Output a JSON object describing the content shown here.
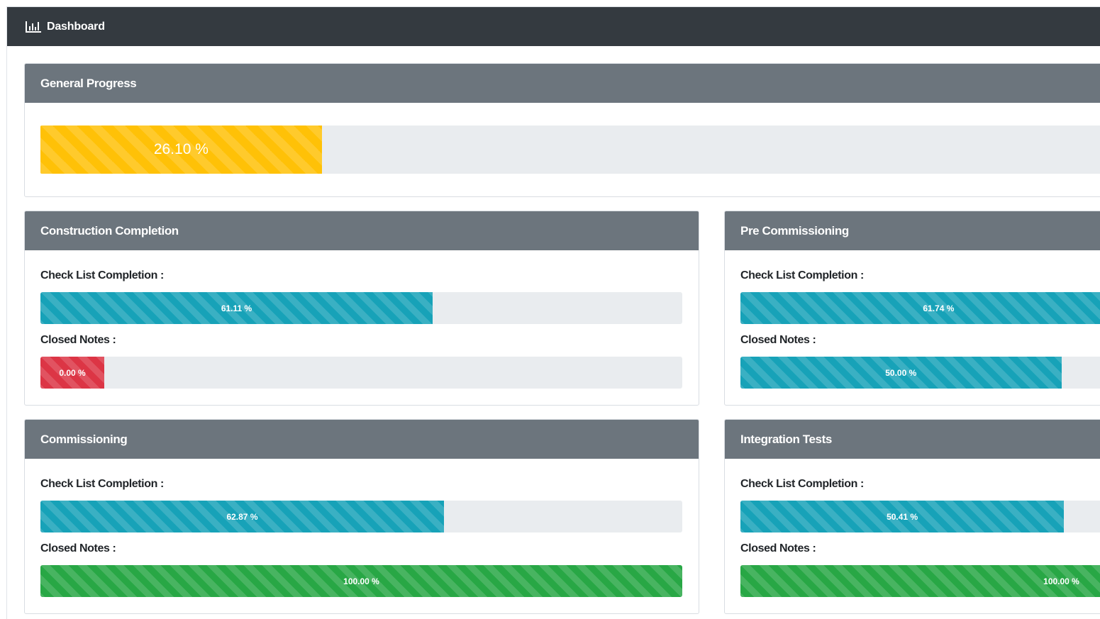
{
  "header": {
    "title": "Dashboard",
    "icon": "bar-chart-icon"
  },
  "colors": {
    "warning": "#ffc107",
    "info": "#17a2b8",
    "danger": "#dc3545",
    "success": "#28a745",
    "card_header": "#6c757d",
    "topbar": "#343a40",
    "track": "#e9ecef"
  },
  "general": {
    "title": "General Progress",
    "value": 26.1,
    "label": "26.10 %",
    "color": "#ffc107"
  },
  "cards": [
    {
      "title": "Construction Completion",
      "checklist": {
        "label": "Check List Completion :",
        "value": 61.11,
        "text": "61.11 %",
        "color": "#17a2b8"
      },
      "notes": {
        "label": "Closed Notes :",
        "value": 0.0,
        "text": "0.00 %",
        "color": "#dc3545"
      }
    },
    {
      "title": "Pre Commissioning",
      "checklist": {
        "label": "Check List Completion :",
        "value": 61.74,
        "text": "61.74 %",
        "color": "#17a2b8"
      },
      "notes": {
        "label": "Closed Notes :",
        "value": 50.0,
        "text": "50.00 %",
        "color": "#17a2b8"
      }
    },
    {
      "title": "Commissioning",
      "checklist": {
        "label": "Check List Completion :",
        "value": 62.87,
        "text": "62.87 %",
        "color": "#17a2b8"
      },
      "notes": {
        "label": "Closed Notes :",
        "value": 100.0,
        "text": "100.00 %",
        "color": "#28a745"
      }
    },
    {
      "title": "Integration Tests",
      "checklist": {
        "label": "Check List Completion :",
        "value": 50.41,
        "text": "50.41 %",
        "color": "#17a2b8"
      },
      "notes": {
        "label": "Closed Notes :",
        "value": 100.0,
        "text": "100.00 %",
        "color": "#28a745"
      }
    }
  ]
}
